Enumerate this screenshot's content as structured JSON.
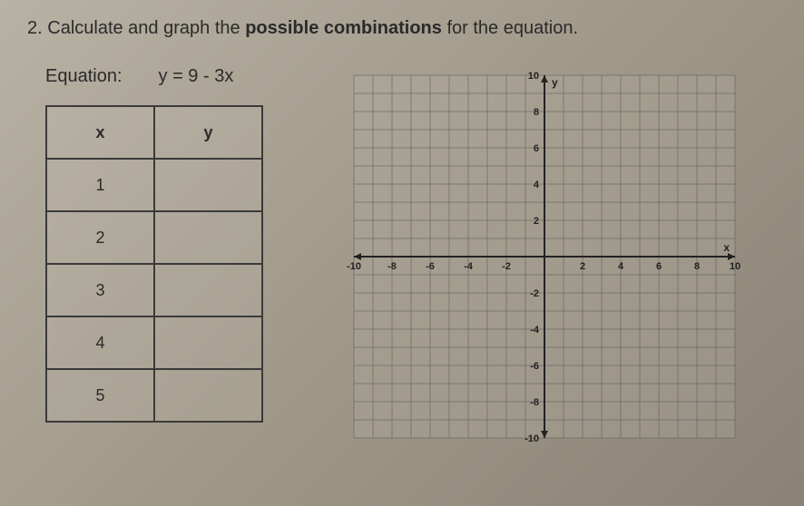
{
  "question": {
    "number": "2.",
    "prefix": "Calculate and graph the ",
    "bold": "possible combinations",
    "suffix": " for the equation."
  },
  "equation": {
    "label": "Equation:",
    "expr": "y = 9 - 3x"
  },
  "table": {
    "headers": {
      "x": "x",
      "y": "y"
    },
    "rows": [
      {
        "x": "1",
        "y": ""
      },
      {
        "x": "2",
        "y": ""
      },
      {
        "x": "3",
        "y": ""
      },
      {
        "x": "4",
        "y": ""
      },
      {
        "x": "5",
        "y": ""
      }
    ]
  },
  "graph": {
    "xmin": -10,
    "xmax": 10,
    "ymin": -10,
    "ymax": 10,
    "xstep": 1,
    "ystep": 1,
    "xtick_labels": [
      "-10",
      "-8",
      "-6",
      "-4",
      "-2",
      "2",
      "4",
      "6",
      "8",
      "10"
    ],
    "ytick_labels": [
      "10",
      "8",
      "6",
      "4",
      "2",
      "-2",
      "-4",
      "-6",
      "-8",
      "-10"
    ],
    "grid_color": "#555555",
    "axis_color": "#222222",
    "background": "rgba(180,175,165,0.3)",
    "x_axis_label": "x",
    "y_axis_label": "y"
  }
}
